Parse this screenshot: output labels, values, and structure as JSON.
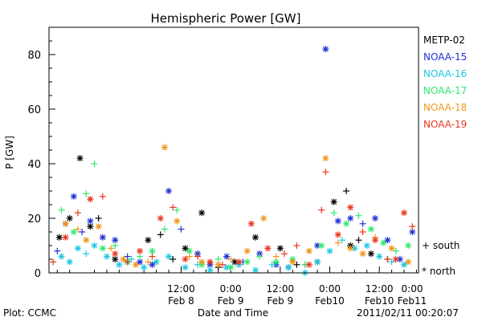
{
  "chart_data": {
    "type": "scatter",
    "title": "Hemispheric Power [GW]",
    "xlabel": "Date and Time",
    "ylabel": "P [GW]",
    "ylim": [
      0,
      90
    ],
    "xlim": [
      -20,
      69.5
    ],
    "x_units": "hours since 2011-02-08 00:00",
    "y_ticks": [
      0,
      20,
      40,
      60,
      80
    ],
    "x_ticks": [
      {
        "x": 12,
        "time": "12:00",
        "date": "Feb 8"
      },
      {
        "x": 24,
        "time": "0:00",
        "date": "Feb 9"
      },
      {
        "x": 36,
        "time": "12:00",
        "date": "Feb 9"
      },
      {
        "x": 48,
        "time": "0:00",
        "date": "Feb10"
      },
      {
        "x": 60,
        "time": "12:00",
        "date": "Feb10"
      },
      {
        "x": 72,
        "time": "0:00",
        "date": "Feb11"
      }
    ],
    "marker_legend": {
      "south": "+ south",
      "north": "* north"
    },
    "series": [
      {
        "name": "METP-02",
        "color": "#000000",
        "points": [
          [
            -17.5,
            13,
            "n"
          ],
          [
            -15,
            20,
            "n"
          ],
          [
            -12.5,
            42,
            "n"
          ],
          [
            -10,
            17,
            "n"
          ],
          [
            -8,
            20,
            "s"
          ],
          [
            -4,
            5,
            "n"
          ],
          [
            -1,
            4,
            "n"
          ],
          [
            4,
            12,
            "n"
          ],
          [
            7,
            14,
            "s"
          ],
          [
            10,
            5,
            "s"
          ],
          [
            13,
            9,
            "n"
          ],
          [
            17,
            22,
            "n"
          ],
          [
            21,
            2,
            "s"
          ],
          [
            25,
            4,
            "n"
          ],
          [
            30,
            13,
            "n"
          ],
          [
            36,
            9,
            "n"
          ],
          [
            40,
            3,
            "s"
          ],
          [
            45,
            4,
            "n"
          ],
          [
            49,
            26,
            "n"
          ],
          [
            52,
            30,
            "s"
          ],
          [
            53,
            10,
            "n"
          ],
          [
            55,
            12,
            "s"
          ],
          [
            58,
            7,
            "n"
          ],
          [
            62,
            5,
            "s"
          ]
        ]
      },
      {
        "name": "NOAA-15",
        "color": "#1f2fd6",
        "points": [
          [
            -18,
            8,
            "s"
          ],
          [
            -16,
            18,
            "n"
          ],
          [
            -14,
            28,
            "n"
          ],
          [
            -12,
            15,
            "s"
          ],
          [
            -10,
            19,
            "n"
          ],
          [
            -7,
            13,
            "n"
          ],
          [
            -4,
            12,
            "n"
          ],
          [
            -1,
            6,
            "s"
          ],
          [
            2,
            4,
            "n"
          ],
          [
            5,
            3,
            "n"
          ],
          [
            9,
            30,
            "n"
          ],
          [
            12,
            16,
            "s"
          ],
          [
            16,
            7,
            "n"
          ],
          [
            19,
            3,
            "n"
          ],
          [
            23,
            6,
            "n"
          ],
          [
            27,
            4,
            "s"
          ],
          [
            31,
            7,
            "n"
          ],
          [
            35,
            3,
            "n"
          ],
          [
            38,
            2,
            "n"
          ],
          [
            42,
            3,
            "s"
          ],
          [
            45,
            10,
            "n"
          ],
          [
            47,
            82,
            "n"
          ],
          [
            50,
            19,
            "n"
          ],
          [
            53,
            20,
            "n"
          ],
          [
            56,
            18,
            "s"
          ],
          [
            59,
            20,
            "n"
          ],
          [
            62,
            12,
            "n"
          ],
          [
            65,
            5,
            "n"
          ],
          [
            68,
            15,
            "n"
          ]
        ]
      },
      {
        "name": "NOAA-16",
        "color": "#1fc8e0",
        "points": [
          [
            -17,
            6,
            "n"
          ],
          [
            -15,
            4,
            "n"
          ],
          [
            -13,
            9,
            "n"
          ],
          [
            -11,
            7,
            "s"
          ],
          [
            -9,
            10,
            "n"
          ],
          [
            -6,
            6,
            "n"
          ],
          [
            -3,
            3,
            "n"
          ],
          [
            0,
            5,
            "s"
          ],
          [
            3,
            2,
            "n"
          ],
          [
            6,
            4,
            "n"
          ],
          [
            9,
            6,
            "n"
          ],
          [
            13,
            2,
            "n"
          ],
          [
            16,
            3,
            "s"
          ],
          [
            19,
            1,
            "n"
          ],
          [
            23,
            2,
            "n"
          ],
          [
            26,
            3,
            "n"
          ],
          [
            30,
            1,
            "n"
          ],
          [
            34,
            3,
            "s"
          ],
          [
            38,
            2,
            "n"
          ],
          [
            42,
            0,
            "n"
          ],
          [
            45,
            4,
            "n"
          ],
          [
            48,
            8,
            "n"
          ],
          [
            51,
            12,
            "s"
          ],
          [
            54,
            9,
            "n"
          ],
          [
            57,
            10,
            "n"
          ],
          [
            60,
            6,
            "n"
          ],
          [
            63,
            4,
            "s"
          ],
          [
            66,
            3,
            "n"
          ]
        ]
      },
      {
        "name": "NOAA-17",
        "color": "#2fe86f",
        "points": [
          [
            -17,
            23,
            "s"
          ],
          [
            -14,
            15,
            "n"
          ],
          [
            -11,
            29,
            "s"
          ],
          [
            -9,
            40,
            "s"
          ],
          [
            -7,
            9,
            "n"
          ],
          [
            -4,
            10,
            "s"
          ],
          [
            -1,
            4,
            "n"
          ],
          [
            2,
            6,
            "s"
          ],
          [
            5,
            8,
            "n"
          ],
          [
            8,
            16,
            "s"
          ],
          [
            11,
            23,
            "s"
          ],
          [
            14,
            8,
            "n"
          ],
          [
            17,
            3,
            "n"
          ],
          [
            21,
            5,
            "s"
          ],
          [
            24,
            2,
            "n"
          ],
          [
            28,
            4,
            "n"
          ],
          [
            31,
            6,
            "s"
          ],
          [
            35,
            4,
            "n"
          ],
          [
            39,
            5,
            "n"
          ],
          [
            42,
            3,
            "s"
          ],
          [
            46,
            10,
            "n"
          ],
          [
            49,
            22,
            "s"
          ],
          [
            52,
            18,
            "n"
          ],
          [
            55,
            21,
            "s"
          ],
          [
            58,
            16,
            "n"
          ],
          [
            61,
            11,
            "n"
          ],
          [
            64,
            8,
            "s"
          ],
          [
            67,
            10,
            "n"
          ]
        ]
      },
      {
        "name": "NOAA-18",
        "color": "#f0961e",
        "points": [
          [
            -16,
            18,
            "n"
          ],
          [
            -13,
            16,
            "s"
          ],
          [
            -11,
            12,
            "n"
          ],
          [
            -8,
            17,
            "n"
          ],
          [
            -5,
            9,
            "s"
          ],
          [
            -2,
            5,
            "n"
          ],
          [
            1,
            3,
            "n"
          ],
          [
            4,
            4,
            "s"
          ],
          [
            8,
            46,
            "n"
          ],
          [
            11,
            19,
            "n"
          ],
          [
            14,
            6,
            "s"
          ],
          [
            17,
            4,
            "n"
          ],
          [
            21,
            3,
            "n"
          ],
          [
            24,
            5,
            "s"
          ],
          [
            28,
            8,
            "n"
          ],
          [
            32,
            20,
            "n"
          ],
          [
            35,
            6,
            "s"
          ],
          [
            39,
            4,
            "n"
          ],
          [
            43,
            8,
            "n"
          ],
          [
            47,
            42,
            "n"
          ],
          [
            50,
            11,
            "s"
          ],
          [
            53,
            9,
            "n"
          ],
          [
            56,
            7,
            "n"
          ],
          [
            59,
            13,
            "s"
          ],
          [
            63,
            9,
            "n"
          ],
          [
            67,
            4,
            "n"
          ]
        ]
      },
      {
        "name": "NOAA-19",
        "color": "#e8371e",
        "points": [
          [
            -19,
            4,
            "s"
          ],
          [
            -16,
            13,
            "n"
          ],
          [
            -13,
            22,
            "s"
          ],
          [
            -10,
            27,
            "n"
          ],
          [
            -7,
            28,
            "s"
          ],
          [
            -4,
            7,
            "n"
          ],
          [
            -1,
            4,
            "s"
          ],
          [
            2,
            8,
            "n"
          ],
          [
            5,
            6,
            "s"
          ],
          [
            7,
            20,
            "n"
          ],
          [
            10,
            24,
            "s"
          ],
          [
            13,
            5,
            "n"
          ],
          [
            16,
            6,
            "s"
          ],
          [
            19,
            4,
            "n"
          ],
          [
            22,
            3,
            "s"
          ],
          [
            26,
            4,
            "n"
          ],
          [
            29,
            18,
            "n"
          ],
          [
            33,
            9,
            "n"
          ],
          [
            37,
            7,
            "s"
          ],
          [
            40,
            10,
            "s"
          ],
          [
            43,
            3,
            "n"
          ],
          [
            46,
            23,
            "s"
          ],
          [
            47,
            37,
            "s"
          ],
          [
            50,
            14,
            "n"
          ],
          [
            53,
            24,
            "n"
          ],
          [
            56,
            15,
            "s"
          ],
          [
            59,
            12,
            "n"
          ],
          [
            62,
            5,
            "s"
          ],
          [
            64,
            5,
            "n"
          ],
          [
            66,
            22,
            "n"
          ],
          [
            68,
            17,
            "s"
          ]
        ]
      }
    ]
  },
  "footer": {
    "plot_source": "Plot: CCMC",
    "timestamp": "2011/02/11 00:20:07"
  }
}
